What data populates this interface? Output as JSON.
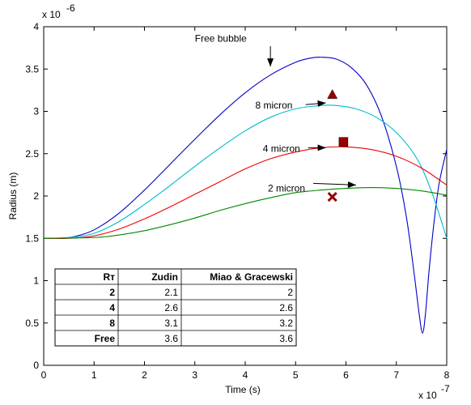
{
  "chart_data": {
    "type": "line",
    "xlabel": "Time (s)",
    "ylabel": "Radius (m)",
    "x_multiplier": "x 10",
    "x_exponent": "-7",
    "y_multiplier": "x 10",
    "y_exponent": "-6",
    "xlim": [
      0,
      8
    ],
    "ylim": [
      0,
      4
    ],
    "x_ticks": [
      0,
      1,
      2,
      3,
      4,
      5,
      6,
      7,
      8
    ],
    "y_ticks": [
      0,
      0.5,
      1,
      1.5,
      2,
      2.5,
      3,
      3.5,
      4
    ],
    "x_tick_labels": [
      "0",
      "1",
      "2",
      "3",
      "4",
      "5",
      "6",
      "7",
      "8"
    ],
    "y_tick_labels": [
      "0",
      "0.5",
      "1",
      "1.5",
      "2",
      "2.5",
      "3",
      "3.5",
      "4"
    ],
    "grid": false,
    "series": [
      {
        "name": "Free bubble",
        "color": "#0000cc",
        "points": [
          [
            0,
            1.5
          ],
          [
            0.3,
            1.5
          ],
          [
            0.6,
            1.52
          ],
          [
            1.0,
            1.6
          ],
          [
            1.5,
            1.8
          ],
          [
            2.0,
            2.07
          ],
          [
            2.5,
            2.37
          ],
          [
            3.0,
            2.67
          ],
          [
            3.5,
            2.96
          ],
          [
            4.0,
            3.22
          ],
          [
            4.5,
            3.43
          ],
          [
            5.0,
            3.58
          ],
          [
            5.3,
            3.63
          ],
          [
            5.5,
            3.64
          ],
          [
            5.8,
            3.62
          ],
          [
            6.1,
            3.52
          ],
          [
            6.4,
            3.32
          ],
          [
            6.7,
            2.95
          ],
          [
            7.0,
            2.35
          ],
          [
            7.2,
            1.75
          ],
          [
            7.35,
            1.1
          ],
          [
            7.45,
            0.62
          ],
          [
            7.52,
            0.38
          ],
          [
            7.58,
            0.62
          ],
          [
            7.65,
            1.12
          ],
          [
            7.75,
            1.7
          ],
          [
            7.85,
            2.15
          ],
          [
            8.0,
            2.55
          ]
        ]
      },
      {
        "name": "8 micron",
        "color": "#00bbcc",
        "points": [
          [
            0,
            1.5
          ],
          [
            0.5,
            1.51
          ],
          [
            1.0,
            1.56
          ],
          [
            1.5,
            1.7
          ],
          [
            2.0,
            1.9
          ],
          [
            2.5,
            2.12
          ],
          [
            3.0,
            2.35
          ],
          [
            3.5,
            2.57
          ],
          [
            4.0,
            2.77
          ],
          [
            4.5,
            2.93
          ],
          [
            5.0,
            3.03
          ],
          [
            5.5,
            3.07
          ],
          [
            5.8,
            3.07
          ],
          [
            6.2,
            3.03
          ],
          [
            6.6,
            2.93
          ],
          [
            7.0,
            2.75
          ],
          [
            7.4,
            2.45
          ],
          [
            7.7,
            2.05
          ],
          [
            8.0,
            1.5
          ]
        ]
      },
      {
        "name": "4 micron",
        "color": "#ee0000",
        "points": [
          [
            0,
            1.5
          ],
          [
            0.5,
            1.5
          ],
          [
            1.0,
            1.53
          ],
          [
            1.5,
            1.61
          ],
          [
            2.0,
            1.73
          ],
          [
            2.5,
            1.87
          ],
          [
            3.0,
            2.02
          ],
          [
            3.5,
            2.17
          ],
          [
            4.0,
            2.32
          ],
          [
            4.5,
            2.44
          ],
          [
            5.0,
            2.52
          ],
          [
            5.5,
            2.57
          ],
          [
            6.0,
            2.58
          ],
          [
            6.5,
            2.55
          ],
          [
            7.0,
            2.47
          ],
          [
            7.5,
            2.33
          ],
          [
            8.0,
            2.13
          ]
        ]
      },
      {
        "name": "2 micron",
        "color": "#008800",
        "points": [
          [
            0,
            1.5
          ],
          [
            1.0,
            1.51
          ],
          [
            1.5,
            1.54
          ],
          [
            2.0,
            1.59
          ],
          [
            2.5,
            1.66
          ],
          [
            3.0,
            1.74
          ],
          [
            3.5,
            1.83
          ],
          [
            4.0,
            1.91
          ],
          [
            4.5,
            1.98
          ],
          [
            5.0,
            2.04
          ],
          [
            5.5,
            2.07
          ],
          [
            6.0,
            2.09
          ],
          [
            6.5,
            2.1
          ],
          [
            7.0,
            2.09
          ],
          [
            7.5,
            2.06
          ],
          [
            8.0,
            2.01
          ]
        ]
      }
    ],
    "markers": [
      {
        "shape": "triangle",
        "x": 5.73,
        "y": 3.2,
        "color": "#990000"
      },
      {
        "shape": "square",
        "x": 5.95,
        "y": 2.64,
        "color": "#990000"
      },
      {
        "shape": "cross",
        "x": 5.73,
        "y": 1.99,
        "color": "#990000"
      }
    ],
    "annotations": [
      {
        "text": "Free bubble",
        "label_x": 3.0,
        "label_y": 3.86,
        "arrow_from": [
          4.5,
          3.77
        ],
        "arrow_to": [
          4.5,
          3.53
        ]
      },
      {
        "text": "8 micron",
        "label_x": 4.2,
        "label_y": 3.07,
        "arrow_from": [
          5.2,
          3.08
        ],
        "arrow_to": [
          5.6,
          3.1
        ]
      },
      {
        "text": "4 micron",
        "label_x": 4.35,
        "label_y": 2.56,
        "arrow_from": [
          5.25,
          2.57
        ],
        "arrow_to": [
          5.6,
          2.57
        ]
      },
      {
        "text": "2 micron",
        "label_x": 4.45,
        "label_y": 2.09,
        "arrow_from": [
          5.35,
          2.15
        ],
        "arrow_to": [
          6.2,
          2.13
        ]
      }
    ],
    "table": {
      "headers": [
        "Rт",
        "Zudin",
        "Miao & Gracewski"
      ],
      "rows": [
        [
          "2",
          "2.1",
          "2"
        ],
        [
          "4",
          "2.6",
          "2.6"
        ],
        [
          "8",
          "3.1",
          "3.2"
        ],
        [
          "Free",
          "3.6",
          "3.6"
        ]
      ]
    }
  }
}
